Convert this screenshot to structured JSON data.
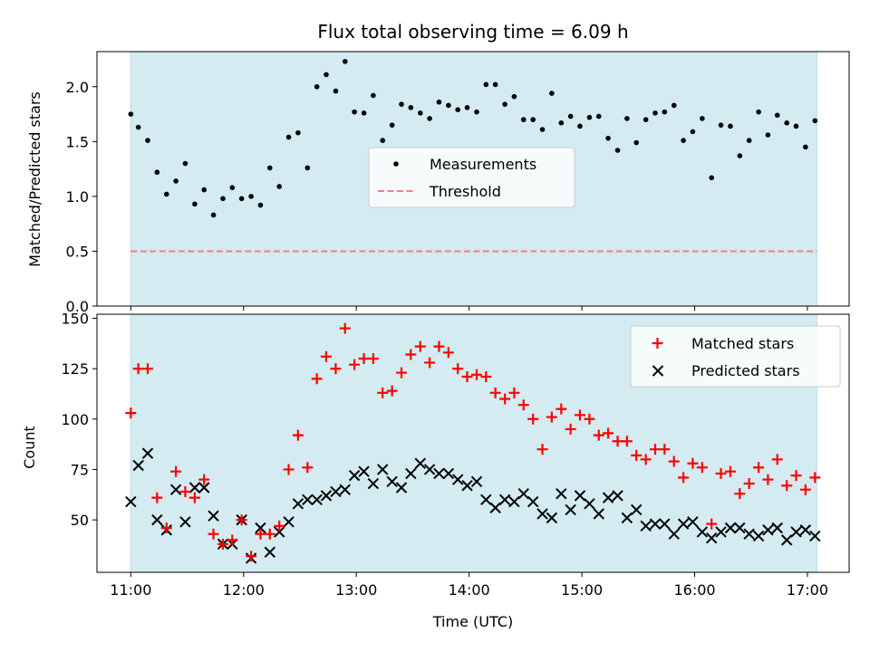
{
  "chart_data": [
    {
      "type": "scatter",
      "title": "Flux total observing time = 6.09 h",
      "ylabel": "Matched/Predicted stars",
      "ylim": [
        0,
        2.32
      ],
      "xlim": [
        10.7,
        17.37
      ],
      "yticks": [
        0.0,
        0.5,
        1.0,
        1.5,
        2.0
      ],
      "ytick_labels": [
        "0.0",
        "0.5",
        "1.0",
        "1.5",
        "2.0"
      ],
      "shaded_span": [
        11.0,
        17.083
      ],
      "shade_color": "#add8e6",
      "legend": {
        "placement": "center",
        "entries": [
          "Measurements",
          "Threshold"
        ]
      },
      "threshold": {
        "name": "Threshold",
        "value": 0.5,
        "color": "#f08080",
        "style": "dashed"
      },
      "series": [
        {
          "name": "Measurements",
          "color": "#000000",
          "marker": "dot",
          "x": [
            11.0,
            11.067,
            11.15,
            11.233,
            11.317,
            11.4,
            11.483,
            11.567,
            11.65,
            11.733,
            11.817,
            11.9,
            11.983,
            12.067,
            12.15,
            12.233,
            12.317,
            12.4,
            12.483,
            12.567,
            12.65,
            12.733,
            12.817,
            12.9,
            12.983,
            13.067,
            13.15,
            13.233,
            13.317,
            13.4,
            13.483,
            13.567,
            13.65,
            13.733,
            13.817,
            13.9,
            13.983,
            14.067,
            14.15,
            14.233,
            14.317,
            14.4,
            14.483,
            14.567,
            14.65,
            14.733,
            14.817,
            14.9,
            14.983,
            15.067,
            15.15,
            15.233,
            15.317,
            15.4,
            15.483,
            15.567,
            15.65,
            15.733,
            15.817,
            15.9,
            15.983,
            16.067,
            16.15,
            16.233,
            16.317,
            16.4,
            16.483,
            16.567,
            16.65,
            16.733,
            16.817,
            16.9,
            16.983,
            17.067
          ],
          "y": [
            1.75,
            1.63,
            1.51,
            1.22,
            1.02,
            1.14,
            1.3,
            0.93,
            1.06,
            0.83,
            0.98,
            1.08,
            0.98,
            1.0,
            0.92,
            1.26,
            1.09,
            1.54,
            1.58,
            1.26,
            2.0,
            2.11,
            1.96,
            2.23,
            1.77,
            1.76,
            1.92,
            1.51,
            1.65,
            1.84,
            1.81,
            1.76,
            1.71,
            1.86,
            1.83,
            1.79,
            1.81,
            1.77,
            2.02,
            2.02,
            1.84,
            1.91,
            1.7,
            1.7,
            1.61,
            1.94,
            1.67,
            1.73,
            1.64,
            1.72,
            1.73,
            1.53,
            1.42,
            1.71,
            1.49,
            1.7,
            1.76,
            1.77,
            1.83,
            1.51,
            1.59,
            1.71,
            1.17,
            1.65,
            1.64,
            1.37,
            1.51,
            1.77,
            1.56,
            1.74,
            1.67,
            1.64,
            1.45,
            1.69
          ]
        }
      ]
    },
    {
      "type": "scatter",
      "xlabel": "Time (UTC)",
      "ylabel": "Count",
      "ylim": [
        24,
        152
      ],
      "xlim": [
        10.7,
        17.37
      ],
      "xticks": [
        11,
        12,
        13,
        14,
        15,
        16,
        17
      ],
      "xtick_labels": [
        "11:00",
        "12:00",
        "13:00",
        "14:00",
        "15:00",
        "16:00",
        "17:00"
      ],
      "yticks": [
        50,
        75,
        100,
        125,
        150
      ],
      "ytick_labels": [
        "50",
        "75",
        "100",
        "125",
        "150"
      ],
      "shaded_span": [
        11.0,
        17.083
      ],
      "shade_color": "#add8e6",
      "legend": {
        "placement": "upper right",
        "entries": [
          "Matched stars",
          "Predicted stars"
        ]
      },
      "series": [
        {
          "name": "Matched stars",
          "color": "#ff0000",
          "marker": "plus",
          "x": [
            11.0,
            11.067,
            11.15,
            11.233,
            11.317,
            11.4,
            11.483,
            11.567,
            11.65,
            11.733,
            11.817,
            11.9,
            11.983,
            12.067,
            12.15,
            12.233,
            12.317,
            12.4,
            12.483,
            12.567,
            12.65,
            12.733,
            12.817,
            12.9,
            12.983,
            13.067,
            13.15,
            13.233,
            13.317,
            13.4,
            13.483,
            13.567,
            13.65,
            13.733,
            13.817,
            13.9,
            13.983,
            14.067,
            14.15,
            14.233,
            14.317,
            14.4,
            14.483,
            14.567,
            14.65,
            14.733,
            14.817,
            14.9,
            14.983,
            15.067,
            15.15,
            15.233,
            15.317,
            15.4,
            15.483,
            15.567,
            15.65,
            15.733,
            15.817,
            15.9,
            15.983,
            16.067,
            16.15,
            16.233,
            16.317,
            16.4,
            16.483,
            16.567,
            16.65,
            16.733,
            16.817,
            16.9,
            16.983,
            17.067
          ],
          "y": [
            103,
            125,
            125,
            61,
            46,
            74,
            64,
            61,
            70,
            43,
            38,
            40,
            50,
            32,
            43,
            43,
            47,
            75,
            92,
            76,
            120,
            131,
            125,
            145,
            127,
            130,
            130,
            113,
            114,
            123,
            132,
            136,
            128,
            136,
            133,
            125,
            121,
            122,
            121,
            113,
            110,
            113,
            107,
            100,
            85,
            101,
            105,
            95,
            102,
            100,
            92,
            93,
            89,
            89,
            82,
            80,
            85,
            85,
            79,
            71,
            78,
            76,
            48,
            73,
            74,
            63,
            68,
            76,
            70,
            80,
            67,
            72,
            65,
            71
          ]
        },
        {
          "name": "Predicted stars",
          "color": "#000000",
          "marker": "x",
          "x": [
            11.0,
            11.067,
            11.15,
            11.233,
            11.317,
            11.4,
            11.483,
            11.567,
            11.65,
            11.733,
            11.817,
            11.9,
            11.983,
            12.067,
            12.15,
            12.233,
            12.317,
            12.4,
            12.483,
            12.567,
            12.65,
            12.733,
            12.817,
            12.9,
            12.983,
            13.067,
            13.15,
            13.233,
            13.317,
            13.4,
            13.483,
            13.567,
            13.65,
            13.733,
            13.817,
            13.9,
            13.983,
            14.067,
            14.15,
            14.233,
            14.317,
            14.4,
            14.483,
            14.567,
            14.65,
            14.733,
            14.817,
            14.9,
            14.983,
            15.067,
            15.15,
            15.233,
            15.317,
            15.4,
            15.483,
            15.567,
            15.65,
            15.733,
            15.817,
            15.9,
            15.983,
            16.067,
            16.15,
            16.233,
            16.317,
            16.4,
            16.483,
            16.567,
            16.65,
            16.733,
            16.817,
            16.9,
            16.983,
            17.067
          ],
          "y": [
            59,
            77,
            83,
            50,
            45,
            65,
            49,
            66,
            66,
            52,
            38,
            38,
            50,
            31,
            46,
            34,
            44,
            49,
            58,
            60,
            60,
            62,
            64,
            65,
            72,
            74,
            68,
            75,
            69,
            66,
            73,
            78,
            75,
            73,
            73,
            70,
            67,
            69,
            60,
            56,
            60,
            59,
            63,
            59,
            53,
            51,
            63,
            55,
            62,
            58,
            53,
            61,
            62,
            51,
            55,
            47,
            48,
            48,
            43,
            48,
            49,
            44,
            41,
            44,
            46,
            46,
            43,
            42,
            45,
            46,
            40,
            44,
            45,
            42
          ]
        }
      ]
    }
  ]
}
